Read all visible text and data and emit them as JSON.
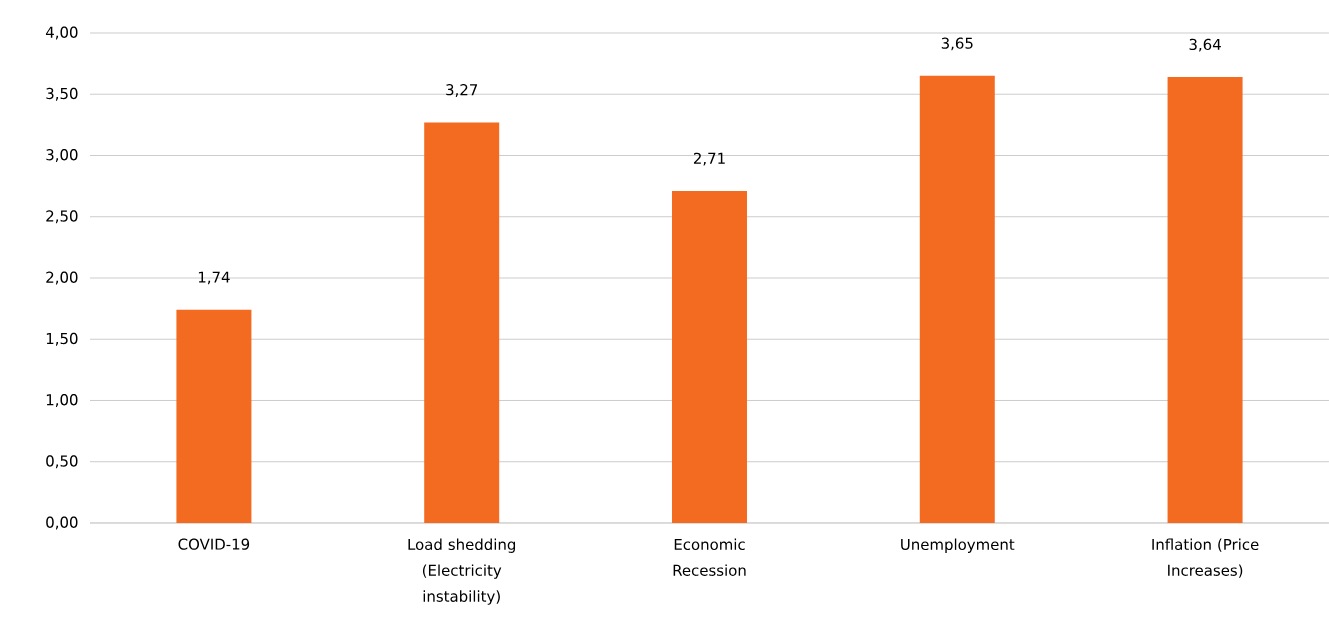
{
  "chart_data": {
    "type": "bar",
    "categories": [
      "COVID-19",
      "Load shedding (Electricity instability)",
      "Economic Recession",
      "Unemployment",
      "Inflation (Price Increases)"
    ],
    "values": [
      1.74,
      3.27,
      2.71,
      3.65,
      3.64
    ],
    "value_labels": [
      "1,74",
      "3,27",
      "2,71",
      "3,65",
      "3,64"
    ],
    "color": "#f26b21",
    "ylim": [
      0,
      4
    ],
    "yticks": [
      {
        "value": 0,
        "label": "0,00"
      },
      {
        "value": 0.5,
        "label": "0,50"
      },
      {
        "value": 1,
        "label": "1,00"
      },
      {
        "value": 1.5,
        "label": "1,50"
      },
      {
        "value": 2,
        "label": "2,00"
      },
      {
        "value": 2.5,
        "label": "2,50"
      },
      {
        "value": 3,
        "label": "3,00"
      },
      {
        "value": 3.5,
        "label": "3,50"
      },
      {
        "value": 4,
        "label": "4,00"
      }
    ],
    "grid": "y"
  }
}
